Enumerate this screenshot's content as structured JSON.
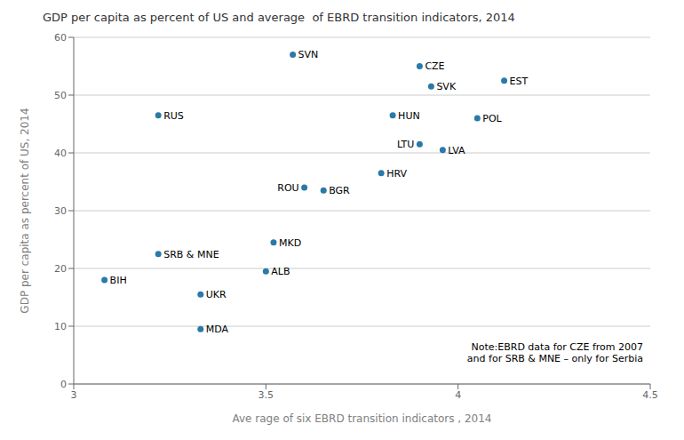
{
  "chart_data": {
    "type": "scatter",
    "title": "GDP per capita as percent of US and average  of EBRD transition indicators, 2014",
    "xlabel": "Ave rage of six EBRD transition indicators , 2014",
    "ylabel": "GDP per capita as percent of US, 2014",
    "xlim": [
      3,
      4.5
    ],
    "ylim": [
      0,
      60
    ],
    "xticks": [
      3,
      3.5,
      4,
      4.5
    ],
    "yticks": [
      0,
      10,
      20,
      30,
      40,
      50,
      60
    ],
    "grid": true,
    "color": "#2a7aa8",
    "annotations": [
      "Note:EBRD data for CZE from 2007\nand for SRB & MNE – only for Serbia"
    ],
    "labels": [
      "BIH",
      "SRB & MNE",
      "RUS",
      "UKR",
      "MDA",
      "ALB",
      "MKD",
      "SVN",
      "ROU",
      "BGR",
      "HRV",
      "HUN",
      "LTU",
      "CZE",
      "SVK",
      "LVA",
      "POL",
      "EST"
    ],
    "x": [
      3.08,
      3.22,
      3.22,
      3.33,
      3.33,
      3.5,
      3.52,
      3.57,
      3.6,
      3.65,
      3.8,
      3.83,
      3.9,
      3.9,
      3.93,
      3.96,
      4.05,
      4.12
    ],
    "values": [
      18,
      22.5,
      46.5,
      15.5,
      9.5,
      19.5,
      24.5,
      57,
      34,
      33.5,
      36.5,
      46.5,
      41.5,
      55,
      51.5,
      40.5,
      46,
      52.5
    ]
  }
}
